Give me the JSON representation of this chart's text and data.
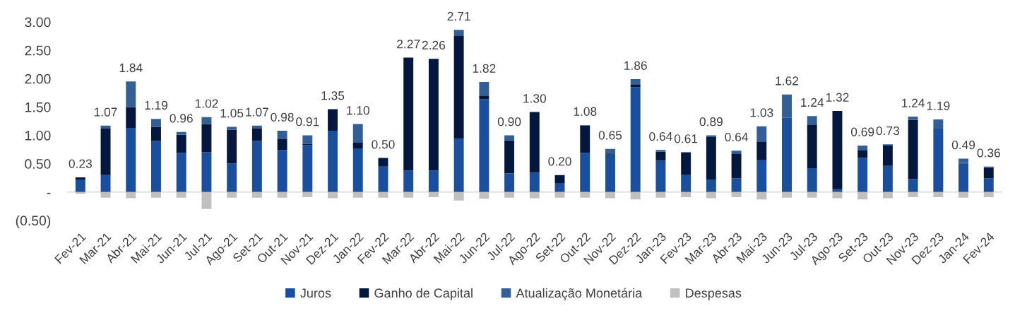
{
  "chart_data": {
    "type": "bar",
    "stacked": true,
    "legend": "bottom",
    "categories": [
      "Fev-21",
      "Mar-21",
      "Abr-21",
      "Mai-21",
      "Jun-21",
      "Jul-21",
      "Ago-21",
      "Set-21",
      "Out-21",
      "Nov-21",
      "Dez-21",
      "Jan-22",
      "Fev-22",
      "Mar-22",
      "Abr-22",
      "Mai-22",
      "Jun-22",
      "Jul-22",
      "Ago-22",
      "Set-22",
      "Out-22",
      "Nov-22",
      "Dez-22",
      "Jan-23",
      "Fev-23",
      "Mar-23",
      "Abr-23",
      "Mai-23",
      "Jun-23",
      "Jul-23",
      "Ago-23",
      "Set-23",
      "Out-23",
      "Nov-23",
      "Dez-23",
      "Jan-24",
      "Fev-24"
    ],
    "series": [
      {
        "name": "Juros",
        "color": "#1a4fa0",
        "values": [
          0.22,
          0.3,
          1.13,
          0.9,
          0.69,
          0.7,
          0.5,
          0.9,
          0.74,
          0.83,
          1.08,
          0.77,
          0.45,
          0.38,
          0.38,
          0.94,
          1.64,
          0.33,
          0.34,
          0.15,
          0.69,
          0.66,
          1.85,
          0.55,
          0.3,
          0.22,
          0.24,
          0.56,
          1.31,
          0.42,
          0.05,
          0.6,
          0.46,
          0.23,
          1.12,
          0.5,
          0.24
        ]
      },
      {
        "name": "Ganho de Capital",
        "color": "#04173f",
        "values": [
          0.04,
          0.82,
          0.37,
          0.25,
          0.32,
          0.5,
          0.6,
          0.22,
          0.2,
          0.02,
          0.38,
          0.1,
          0.15,
          1.99,
          1.97,
          1.82,
          0.06,
          0.58,
          1.07,
          0.15,
          0.48,
          0.02,
          0.05,
          0.16,
          0.4,
          0.75,
          0.44,
          0.33,
          null,
          0.77,
          1.38,
          0.14,
          0.36,
          1.04,
          null,
          0.01,
          0.19
        ]
      },
      {
        "name": "Atualização Monetária",
        "color": "#335f96",
        "values": [
          null,
          0.05,
          0.45,
          0.14,
          0.05,
          0.12,
          0.05,
          0.05,
          0.14,
          0.15,
          null,
          0.33,
          null,
          null,
          null,
          0.1,
          0.24,
          0.09,
          null,
          null,
          0.01,
          0.08,
          0.09,
          0.03,
          null,
          0.03,
          0.05,
          0.27,
          0.41,
          0.15,
          null,
          0.08,
          0.02,
          0.06,
          0.16,
          0.08,
          0.02
        ]
      },
      {
        "name": "Despesas",
        "color": "#bfc0bf",
        "values": [
          -0.03,
          -0.1,
          -0.11,
          -0.1,
          -0.1,
          -0.3,
          -0.1,
          -0.1,
          -0.1,
          -0.09,
          -0.11,
          -0.1,
          -0.1,
          -0.1,
          -0.09,
          -0.15,
          -0.12,
          -0.1,
          -0.11,
          -0.1,
          -0.1,
          -0.11,
          -0.13,
          -0.1,
          -0.09,
          -0.11,
          -0.09,
          -0.13,
          -0.1,
          -0.1,
          -0.11,
          -0.13,
          -0.11,
          -0.09,
          -0.09,
          -0.1,
          -0.09
        ]
      }
    ],
    "totals": [
      "0.23",
      "1.07",
      "1.84",
      "1.19",
      "0.96",
      "1.02",
      "1.05",
      "1.07",
      "0.98",
      "0.91",
      "1.35",
      "1.10",
      "0.50",
      "2.27",
      "2.26",
      "2.71",
      "1.82",
      "0.90",
      "1.30",
      "0.20",
      "1.08",
      "0.65",
      "1.86",
      "0.64",
      "0.61",
      "0.89",
      "0.64",
      "1.03",
      "1.62",
      "1.24",
      "1.32",
      "0.69",
      "0.73",
      "1.24",
      "1.19",
      "0.49",
      "0.36"
    ],
    "ylim": [
      -0.5,
      3.0
    ],
    "yticks": [
      {
        "value": -0.5,
        "label": "(0.50)"
      },
      {
        "value": 0,
        "label": "-"
      },
      {
        "value": 0.5,
        "label": "0.50"
      },
      {
        "value": 1.0,
        "label": "1.00"
      },
      {
        "value": 1.5,
        "label": "1.50"
      },
      {
        "value": 2.0,
        "label": "2.00"
      },
      {
        "value": 2.5,
        "label": "2.50"
      },
      {
        "value": 3.0,
        "label": "3.00"
      }
    ]
  }
}
